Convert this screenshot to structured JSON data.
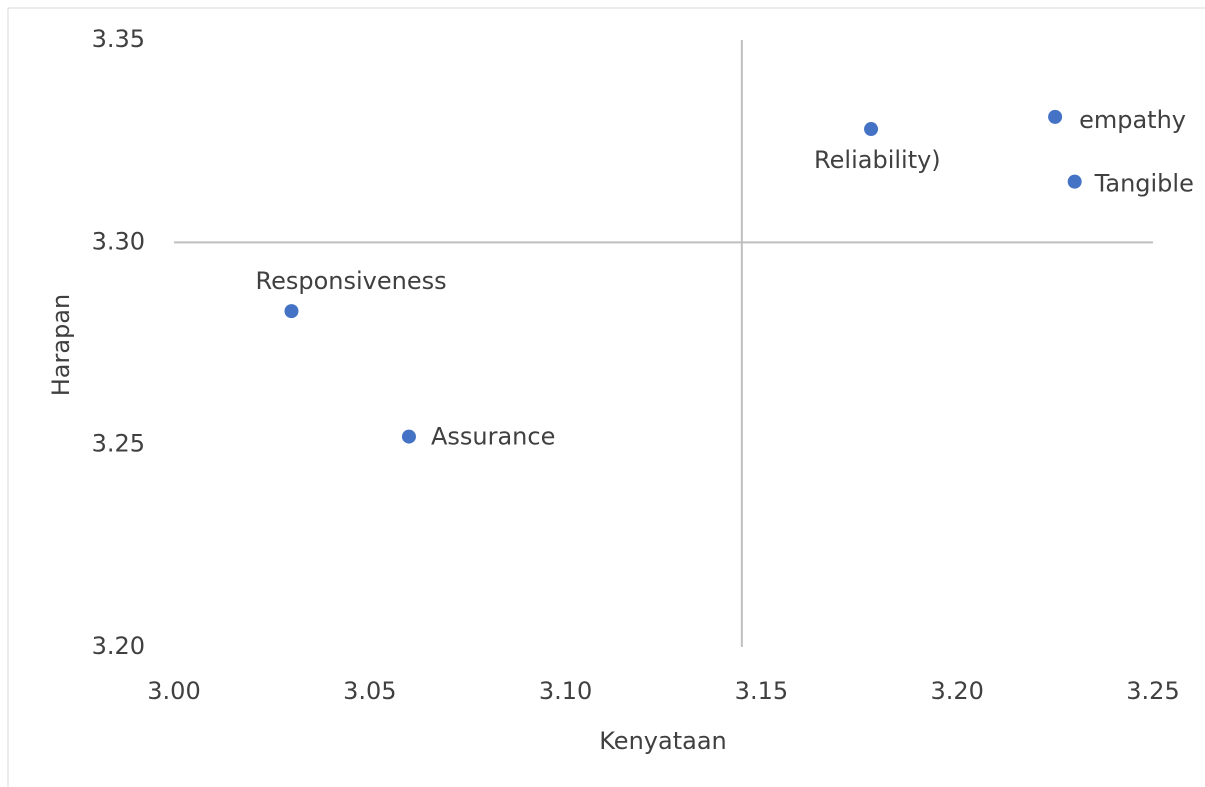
{
  "chart_data": {
    "type": "scatter",
    "x_label": "Kenyataan",
    "y_label": "Harapan",
    "labels": [
      "Reliability)",
      "empathy",
      "Tangible",
      "Responsiveness",
      "Assurance"
    ],
    "series": [
      {
        "color": "#4472c4",
        "x": [
          3.178,
          3.225,
          3.23,
          3.03,
          3.06
        ],
        "values": [
          3.328,
          3.331,
          3.315,
          3.283,
          3.252
        ]
      }
    ],
    "xlim": [
      3.0,
      3.25
    ],
    "xticks": [
      {
        "value": 3.0,
        "label": "3.00"
      },
      {
        "value": 3.05,
        "label": "3.05"
      },
      {
        "value": 3.1,
        "label": "3.10"
      },
      {
        "value": 3.15,
        "label": "3.15"
      },
      {
        "value": 3.2,
        "label": "3.20"
      },
      {
        "value": 3.25,
        "label": "3.25"
      }
    ],
    "ylim": [
      3.2,
      3.35
    ],
    "yticks": [
      {
        "value": 3.2,
        "label": "3.20"
      },
      {
        "value": 3.25,
        "label": "3.25"
      },
      {
        "value": 3.3,
        "label": "3.30"
      },
      {
        "value": 3.35,
        "label": "3.35"
      }
    ],
    "quadrant_lines": {
      "x": 3.145,
      "y": 3.3
    },
    "grid": false
  }
}
